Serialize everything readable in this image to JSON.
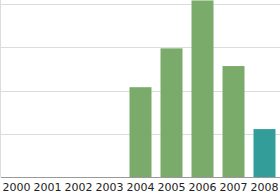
{
  "chart_data": {
    "type": "bar",
    "categories": [
      "2000",
      "2001",
      "2002",
      "2003",
      "2004",
      "2005",
      "2006",
      "2007",
      "2008"
    ],
    "values": [
      null,
      null,
      null,
      null,
      2.08,
      2.98,
      4.09,
      2.57,
      1.11
    ],
    "colors": [
      "#7aab6a",
      "#7aab6a",
      "#7aab6a",
      "#7aab6a",
      "#7aab6a",
      "#7aab6a",
      "#7aab6a",
      "#7aab6a",
      "#339e99"
    ],
    "ylim": [
      0,
      4.1
    ],
    "yticks": [
      0,
      1,
      2,
      3,
      4
    ],
    "grid": true,
    "tick_labels": "x"
  }
}
